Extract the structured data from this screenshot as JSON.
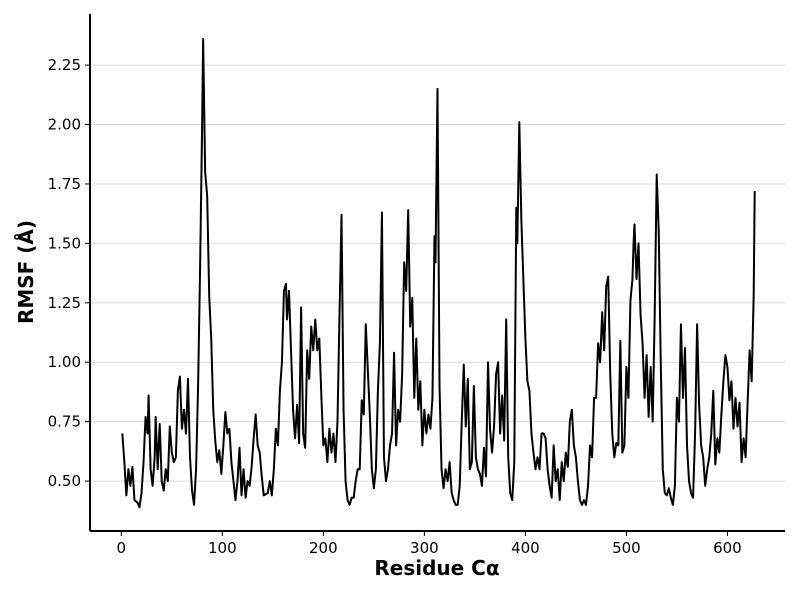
{
  "chart_data": {
    "type": "line",
    "x_label": "Residue Cα",
    "y_label": "RMSF (Å)",
    "xlim": [
      -31,
      657
    ],
    "ylim": [
      0.29,
      2.465
    ],
    "xticks": [
      0,
      100,
      200,
      300,
      400,
      500,
      600
    ],
    "yticks": [
      {
        "value": 0.5,
        "label": "0.50"
      },
      0.75,
      {
        "value": 1.0,
        "label": "1.00"
      },
      1.25,
      {
        "value": 1.5,
        "label": "1.50"
      },
      1.75,
      {
        "value": 2.0,
        "label": "2.00"
      },
      2.25
    ],
    "grid": true,
    "series": [
      {
        "color": "#000000",
        "x": [
          1,
          3,
          5,
          7,
          9,
          11,
          13,
          16,
          18,
          20,
          22,
          24,
          26,
          27,
          29,
          31,
          33,
          34,
          36,
          38,
          40,
          42,
          44,
          46,
          48,
          50,
          52,
          54,
          56,
          58,
          60,
          62,
          64,
          66,
          68,
          70,
          72,
          74,
          76,
          78,
          80,
          81,
          83,
          85,
          87,
          89,
          91,
          93,
          95,
          97,
          99,
          101,
          103,
          105,
          107,
          109,
          111,
          113,
          115,
          117,
          119,
          121,
          123,
          125,
          127,
          129,
          131,
          133,
          135,
          137,
          139,
          141,
          145,
          147,
          149,
          151,
          153,
          155,
          157,
          159,
          161,
          163,
          164,
          166,
          168,
          170,
          172,
          174,
          176,
          178,
          180,
          182,
          184,
          186,
          188,
          190,
          192,
          194,
          196,
          198,
          200,
          202,
          204,
          206,
          208,
          210,
          212,
          214,
          216,
          218,
          220,
          222,
          224,
          226,
          228,
          230,
          232,
          234,
          236,
          238,
          240,
          242,
          244,
          246,
          248,
          250,
          252,
          254,
          256,
          258,
          260,
          262,
          264,
          266,
          268,
          270,
          272,
          274,
          276,
          278,
          280,
          282,
          284,
          286,
          288,
          290,
          292,
          294,
          296,
          298,
          300,
          302,
          304,
          306,
          308,
          310,
          311,
          313,
          315,
          317,
          319,
          321,
          323,
          325,
          327,
          329,
          331,
          333,
          335,
          337,
          339,
          341,
          343,
          345,
          347,
          349,
          351,
          353,
          355,
          357,
          359,
          361,
          363,
          365,
          367,
          369,
          371,
          373,
          375,
          377,
          379,
          381,
          383,
          385,
          387,
          389,
          391,
          392,
          394,
          396,
          398,
          400,
          402,
          404,
          406,
          408,
          410,
          412,
          414,
          416,
          418,
          420,
          422,
          424,
          426,
          428,
          430,
          432,
          434,
          436,
          438,
          440,
          442,
          444,
          446,
          448,
          450,
          452,
          454,
          456,
          458,
          460,
          462,
          464,
          466,
          468,
          470,
          472,
          474,
          476,
          478,
          480,
          482,
          484,
          486,
          488,
          490,
          492,
          494,
          496,
          498,
          500,
          502,
          504,
          506,
          507,
          508,
          510,
          512,
          514,
          516,
          518,
          520,
          522,
          524,
          526,
          528,
          530,
          532,
          534,
          536,
          538,
          540,
          542,
          544,
          546,
          548,
          550,
          552,
          554,
          556,
          558,
          560,
          562,
          564,
          566,
          568,
          570,
          572,
          574,
          576,
          578,
          580,
          582,
          584,
          586,
          588,
          590,
          592,
          594,
          596,
          598,
          600,
          602,
          604,
          606,
          608,
          610,
          612,
          614,
          616,
          618,
          620,
          622,
          624,
          626,
          627
        ],
        "values": [
          0.7,
          0.58,
          0.44,
          0.55,
          0.48,
          0.56,
          0.42,
          0.41,
          0.39,
          0.45,
          0.58,
          0.77,
          0.7,
          0.86,
          0.55,
          0.48,
          0.6,
          0.77,
          0.55,
          0.74,
          0.5,
          0.46,
          0.55,
          0.5,
          0.73,
          0.62,
          0.58,
          0.6,
          0.88,
          0.94,
          0.72,
          0.8,
          0.7,
          0.93,
          0.6,
          0.46,
          0.4,
          0.55,
          0.9,
          1.4,
          2.0,
          2.36,
          1.8,
          1.7,
          1.28,
          1.1,
          0.8,
          0.67,
          0.58,
          0.63,
          0.53,
          0.65,
          0.79,
          0.7,
          0.72,
          0.58,
          0.5,
          0.42,
          0.5,
          0.64,
          0.44,
          0.55,
          0.43,
          0.5,
          0.48,
          0.56,
          0.68,
          0.78,
          0.65,
          0.62,
          0.52,
          0.44,
          0.45,
          0.5,
          0.44,
          0.55,
          0.72,
          0.65,
          0.88,
          1.0,
          1.3,
          1.33,
          1.18,
          1.3,
          1.05,
          0.8,
          0.68,
          0.82,
          0.66,
          1.23,
          0.7,
          0.64,
          1.05,
          0.93,
          1.15,
          1.05,
          1.18,
          1.05,
          1.1,
          0.86,
          0.65,
          0.68,
          0.58,
          0.72,
          0.62,
          0.7,
          0.58,
          0.75,
          1.2,
          1.62,
          0.8,
          0.5,
          0.42,
          0.4,
          0.43,
          0.43,
          0.5,
          0.55,
          0.55,
          0.84,
          0.78,
          1.16,
          0.97,
          0.78,
          0.55,
          0.47,
          0.55,
          0.88,
          1.08,
          1.63,
          0.6,
          0.5,
          0.55,
          0.65,
          0.7,
          1.04,
          0.65,
          0.8,
          0.75,
          0.95,
          1.42,
          1.3,
          1.64,
          1.15,
          1.27,
          0.85,
          1.1,
          0.8,
          0.92,
          0.65,
          0.8,
          0.7,
          0.78,
          0.72,
          0.85,
          1.53,
          1.42,
          2.15,
          0.9,
          0.55,
          0.47,
          0.55,
          0.5,
          0.58,
          0.45,
          0.42,
          0.4,
          0.4,
          0.48,
          0.75,
          0.99,
          0.73,
          0.93,
          0.55,
          0.58,
          0.9,
          0.6,
          0.55,
          0.53,
          0.48,
          0.64,
          0.52,
          1.0,
          0.72,
          0.62,
          0.73,
          0.95,
          1.0,
          0.7,
          0.86,
          0.67,
          1.18,
          0.6,
          0.45,
          0.42,
          0.58,
          1.65,
          1.5,
          2.01,
          1.6,
          1.35,
          1.1,
          0.92,
          0.88,
          0.7,
          0.62,
          0.55,
          0.6,
          0.55,
          0.7,
          0.7,
          0.68,
          0.55,
          0.48,
          0.43,
          0.65,
          0.5,
          0.55,
          0.42,
          0.58,
          0.5,
          0.62,
          0.56,
          0.75,
          0.8,
          0.65,
          0.6,
          0.5,
          0.42,
          0.4,
          0.42,
          0.4,
          0.48,
          0.65,
          0.6,
          0.85,
          0.85,
          1.08,
          1.0,
          1.21,
          1.05,
          1.32,
          1.36,
          0.95,
          0.7,
          0.6,
          0.66,
          0.65,
          1.09,
          0.62,
          0.65,
          0.98,
          0.85,
          1.26,
          1.35,
          1.49,
          1.58,
          1.35,
          1.5,
          1.2,
          1.08,
          0.85,
          1.03,
          0.77,
          0.98,
          0.75,
          1.2,
          1.79,
          1.55,
          1.0,
          0.55,
          0.45,
          0.44,
          0.47,
          0.43,
          0.4,
          0.48,
          0.85,
          0.75,
          1.16,
          0.85,
          1.06,
          0.65,
          0.5,
          0.45,
          0.43,
          0.7,
          1.16,
          0.82,
          0.65,
          0.6,
          0.48,
          0.55,
          0.6,
          0.7,
          0.88,
          0.57,
          0.68,
          0.62,
          0.78,
          0.92,
          1.03,
          0.98,
          0.84,
          0.92,
          0.72,
          0.85,
          0.73,
          0.83,
          0.58,
          0.68,
          0.6,
          0.83,
          1.05,
          0.92,
          1.28,
          1.72
        ]
      }
    ]
  }
}
